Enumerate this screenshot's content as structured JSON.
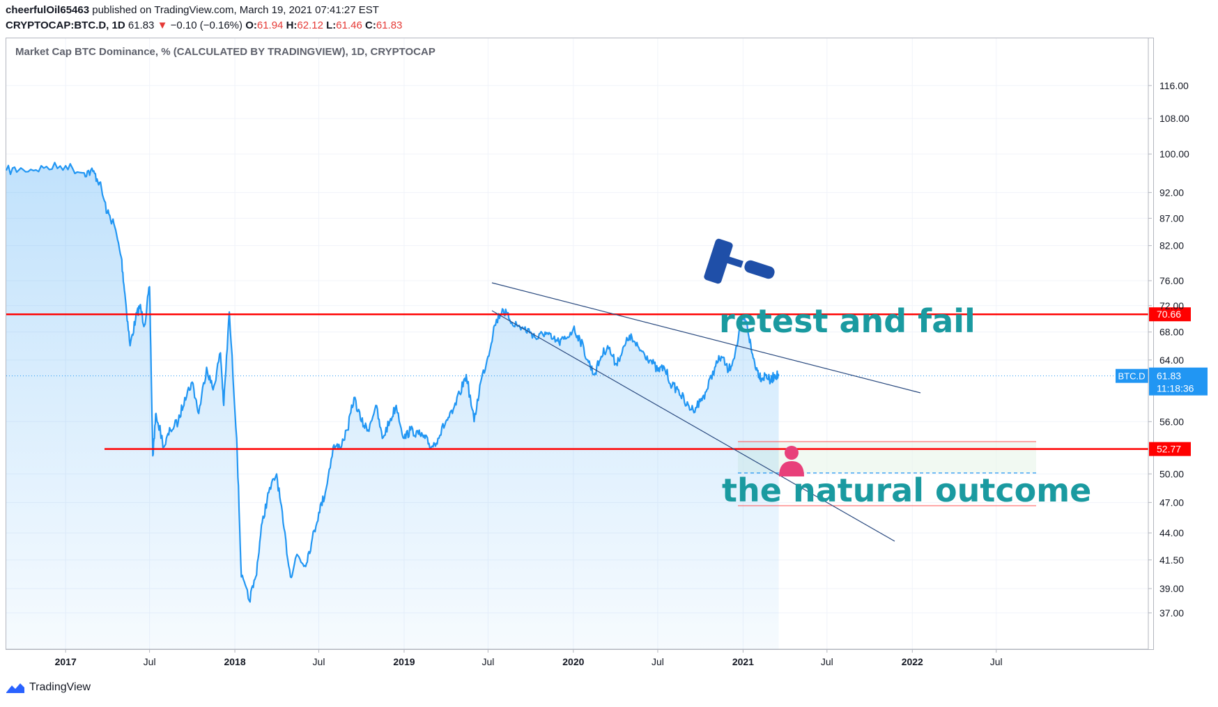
{
  "header": {
    "user": "cheerfulOil65463",
    "published": "published on TradingView.com, March 19, 2021 07:41:27 EST",
    "symbol": "CRYPTOCAP:BTC.D, 1D",
    "last": "61.83",
    "change_arrow": "▼",
    "change": "−0.10 (−0.16%)",
    "o_label": "O:",
    "o": "61.94",
    "h_label": "H:",
    "h": "62.12",
    "l_label": "L:",
    "l": "61.46",
    "c_label": "C:",
    "c": "61.83"
  },
  "legend": "Market Cap BTC Dominance, % (CALCULATED BY TRADINGVIEW), 1D, CRYPTOCAP",
  "footer": {
    "brand": "TradingView",
    "icon": "tradingview-logo-icon"
  },
  "colors": {
    "line": "#2196f3",
    "level": "#ff0000",
    "trend": "#2a4a7f",
    "text_annotation": "#1a9aa0",
    "person": "#e8407a",
    "gavel": "#1f4fa8"
  },
  "chart_data": {
    "type": "area",
    "scale": "log",
    "ylim": [
      35,
      116
    ],
    "y_ticks": [
      "116.00",
      "108.00",
      "100.00",
      "92.00",
      "87.00",
      "82.00",
      "76.00",
      "72.00",
      "68.00",
      "64.00",
      "56.00",
      "50.00",
      "47.00",
      "44.00",
      "41.50",
      "39.00",
      "37.00"
    ],
    "x_tick_labels": [
      "2017",
      "Jul",
      "2018",
      "Jul",
      "2019",
      "Jul",
      "2020",
      "Jul",
      "2021",
      "Jul",
      "2022",
      "Jul"
    ],
    "x_tick_dates": [
      "2017-01-01",
      "2017-07-01",
      "2018-01-01",
      "2018-07-01",
      "2019-01-01",
      "2019-07-01",
      "2020-01-01",
      "2020-07-01",
      "2021-01-01",
      "2021-07-01",
      "2022-01-01",
      "2022-07-01"
    ],
    "x_range": [
      "2016-08-26",
      "2023-05-25"
    ],
    "series": [
      {
        "x": [
          "2016-08-26",
          "2016-10-01",
          "2016-11-15",
          "2017-01-01",
          "2017-02-10",
          "2017-03-01",
          "2017-03-15",
          "2017-04-01",
          "2017-04-15",
          "2017-05-01",
          "2017-05-10",
          "2017-05-20",
          "2017-06-01",
          "2017-06-10",
          "2017-06-20",
          "2017-07-01",
          "2017-07-08",
          "2017-07-15",
          "2017-08-01",
          "2017-08-15",
          "2017-09-01",
          "2017-09-15",
          "2017-10-01",
          "2017-10-15",
          "2017-11-01",
          "2017-11-15",
          "2017-12-01",
          "2017-12-08",
          "2017-12-20",
          "2018-01-05",
          "2018-01-15",
          "2018-02-01",
          "2018-02-15",
          "2018-03-01",
          "2018-03-15",
          "2018-04-01",
          "2018-04-15",
          "2018-05-01",
          "2018-05-15",
          "2018-06-01",
          "2018-06-15",
          "2018-07-01",
          "2018-07-15",
          "2018-08-01",
          "2018-08-15",
          "2018-09-01",
          "2018-09-15",
          "2018-10-01",
          "2018-10-15",
          "2018-11-01",
          "2018-11-15",
          "2018-12-01",
          "2018-12-15",
          "2019-01-01",
          "2019-01-15",
          "2019-02-01",
          "2019-02-15",
          "2019-03-01",
          "2019-03-15",
          "2019-04-01",
          "2019-04-15",
          "2019-05-01",
          "2019-05-15",
          "2019-06-01",
          "2019-06-15",
          "2019-07-01",
          "2019-07-15",
          "2019-08-01",
          "2019-08-15",
          "2019-09-01",
          "2019-09-15",
          "2019-10-01",
          "2019-10-15",
          "2019-11-01",
          "2019-11-15",
          "2019-12-01",
          "2019-12-15",
          "2020-01-01",
          "2020-01-15",
          "2020-02-01",
          "2020-02-15",
          "2020-03-01",
          "2020-03-15",
          "2020-04-01",
          "2020-04-15",
          "2020-05-01",
          "2020-05-15",
          "2020-06-01",
          "2020-06-15",
          "2020-07-01",
          "2020-07-15",
          "2020-08-01",
          "2020-08-15",
          "2020-09-01",
          "2020-09-15",
          "2020-10-01",
          "2020-10-15",
          "2020-11-01",
          "2020-11-15",
          "2020-12-01",
          "2020-12-15",
          "2021-01-01",
          "2021-01-10",
          "2021-01-20",
          "2021-02-01",
          "2021-02-10",
          "2021-02-20",
          "2021-03-01",
          "2021-03-10",
          "2021-03-19"
        ],
        "y": [
          96.5,
          96.7,
          97.0,
          97.5,
          96.0,
          96.3,
          94.0,
          88.0,
          86.0,
          80.0,
          73.0,
          66.0,
          70.0,
          72.0,
          69.0,
          75.0,
          52.0,
          57.0,
          53.0,
          55.0,
          56.0,
          59.0,
          61.0,
          57.0,
          63.0,
          60.0,
          65.0,
          58.0,
          71.0,
          54.0,
          40.0,
          38.0,
          40.0,
          45.0,
          48.0,
          50.0,
          45.0,
          40.0,
          42.0,
          41.0,
          43.0,
          46.0,
          48.0,
          53.0,
          53.0,
          55.0,
          59.0,
          56.0,
          55.0,
          58.0,
          54.0,
          56.0,
          58.0,
          54.0,
          55.0,
          54.5,
          54.0,
          53.0,
          54.0,
          56.0,
          57.0,
          59.5,
          62.0,
          56.0,
          61.0,
          64.5,
          69.0,
          71.5,
          70.0,
          69.0,
          68.5,
          68.0,
          67.0,
          68.0,
          67.0,
          66.5,
          67.0,
          68.5,
          67.0,
          64.0,
          62.0,
          64.5,
          66.0,
          63.5,
          65.0,
          67.5,
          66.0,
          65.0,
          64.0,
          62.5,
          63.0,
          60.5,
          60.0,
          58.0,
          57.5,
          58.5,
          60.0,
          63.0,
          64.5,
          62.5,
          65.0,
          70.0,
          69.0,
          65.0,
          62.5,
          61.5,
          62.0,
          61.0,
          62.0,
          61.83
        ]
      }
    ],
    "levels": [
      {
        "value": 70.66,
        "label": "70.66"
      },
      {
        "value": 52.77,
        "label": "52.77"
      }
    ],
    "price_label": {
      "name": "BTC.D",
      "value": "61.83",
      "countdown": "11:18:36"
    },
    "annotations": [
      "retest and fail",
      "the natural outcome"
    ]
  }
}
